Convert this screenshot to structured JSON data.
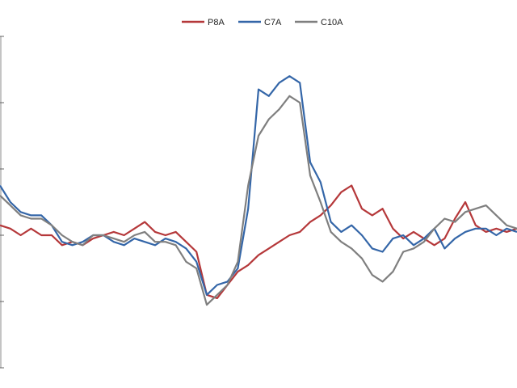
{
  "chart_data": {
    "type": "line",
    "title": "",
    "xlabel": "",
    "ylabel": "",
    "legend_position": "top-center",
    "grid": false,
    "ylim": [
      0,
      100
    ],
    "y_ticks": [
      0,
      20,
      40,
      60,
      80,
      100
    ],
    "x": [
      0,
      2,
      4,
      6,
      8,
      10,
      12,
      14,
      16,
      18,
      20,
      22,
      24,
      26,
      28,
      30,
      32,
      34,
      36,
      38,
      40,
      42,
      44,
      46,
      48,
      50,
      52,
      54,
      56,
      58,
      60,
      62,
      64,
      66,
      68,
      70,
      72,
      74,
      76,
      78,
      80,
      82,
      84,
      86,
      88,
      90,
      92,
      94,
      96,
      98,
      100
    ],
    "series": [
      {
        "name": "P8A",
        "color": "#b5383a",
        "values": [
          43,
          42,
          40,
          42,
          40,
          40,
          37,
          38,
          37,
          39,
          40,
          41,
          40,
          42,
          44,
          41,
          40,
          41,
          38,
          35,
          22,
          21,
          25,
          29,
          31,
          34,
          36,
          38,
          40,
          41,
          44,
          46,
          49,
          53,
          55,
          48,
          46,
          48,
          42,
          39,
          41,
          39,
          37,
          39,
          45,
          50,
          43,
          41,
          42,
          41,
          42
        ]
      },
      {
        "name": "C7A",
        "color": "#3466a8",
        "values": [
          55,
          50,
          47,
          46,
          46,
          43,
          38,
          37,
          38,
          40,
          40,
          38,
          37,
          39,
          38,
          37,
          39,
          38,
          36,
          32,
          22,
          25,
          26,
          30,
          48,
          84,
          82,
          86,
          88,
          86,
          62,
          56,
          44,
          41,
          43,
          40,
          36,
          35,
          39,
          40,
          37,
          39,
          42,
          36,
          39,
          41,
          42,
          42,
          40,
          42,
          41
        ]
      },
      {
        "name": "C10A",
        "color": "#7f7f7f",
        "values": [
          52,
          49,
          46,
          45,
          45,
          43,
          40,
          38,
          37,
          40,
          40,
          39,
          38,
          40,
          41,
          38,
          38,
          37,
          32,
          30,
          19,
          22,
          25,
          32,
          55,
          70,
          75,
          78,
          82,
          80,
          58,
          50,
          41,
          38,
          36,
          33,
          28,
          26,
          29,
          35,
          36,
          38,
          42,
          45,
          44,
          47,
          48,
          49,
          46,
          43,
          42
        ]
      }
    ]
  }
}
